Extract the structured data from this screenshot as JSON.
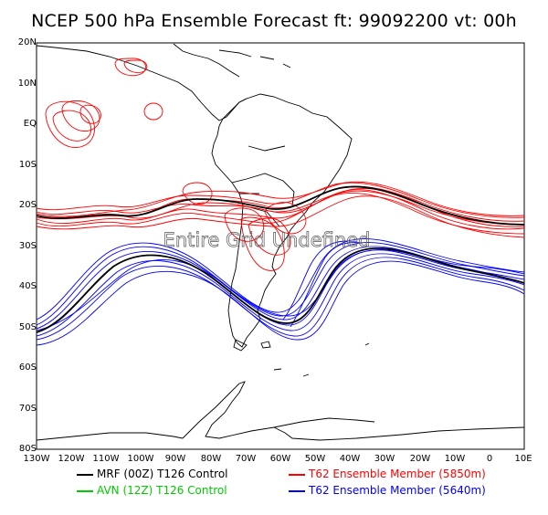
{
  "title": "NCEP 500 hPa Ensemble Forecast   ft: 99092200  vt: 00h",
  "overlay_text": "Entire Grid Undefined",
  "lat_labels": [
    "20N",
    "10N",
    "EQ",
    "10S",
    "20S",
    "30S",
    "40S",
    "50S",
    "60S",
    "70S",
    "80S"
  ],
  "lon_labels": [
    "130W",
    "120W",
    "110W",
    "100W",
    "90W",
    "80W",
    "70W",
    "60W",
    "50W",
    "40W",
    "30W",
    "20W",
    "10W",
    "0",
    "10E"
  ],
  "legend": [
    {
      "label": "MRF (00Z) T126 Control",
      "color": "#000000"
    },
    {
      "label": "T62 Ensemble Member (5850m)",
      "color": "#ff0000"
    },
    {
      "label": "AVN (12Z) T126 Control",
      "color": "#00cc00"
    },
    {
      "label": "T62 Ensemble Member (5640m)",
      "color": "#0000ff"
    }
  ],
  "colors": {
    "control": "#000000",
    "member_5850": "#ff0000",
    "member_5640": "#0000ff",
    "avn": "#00cc00"
  }
}
